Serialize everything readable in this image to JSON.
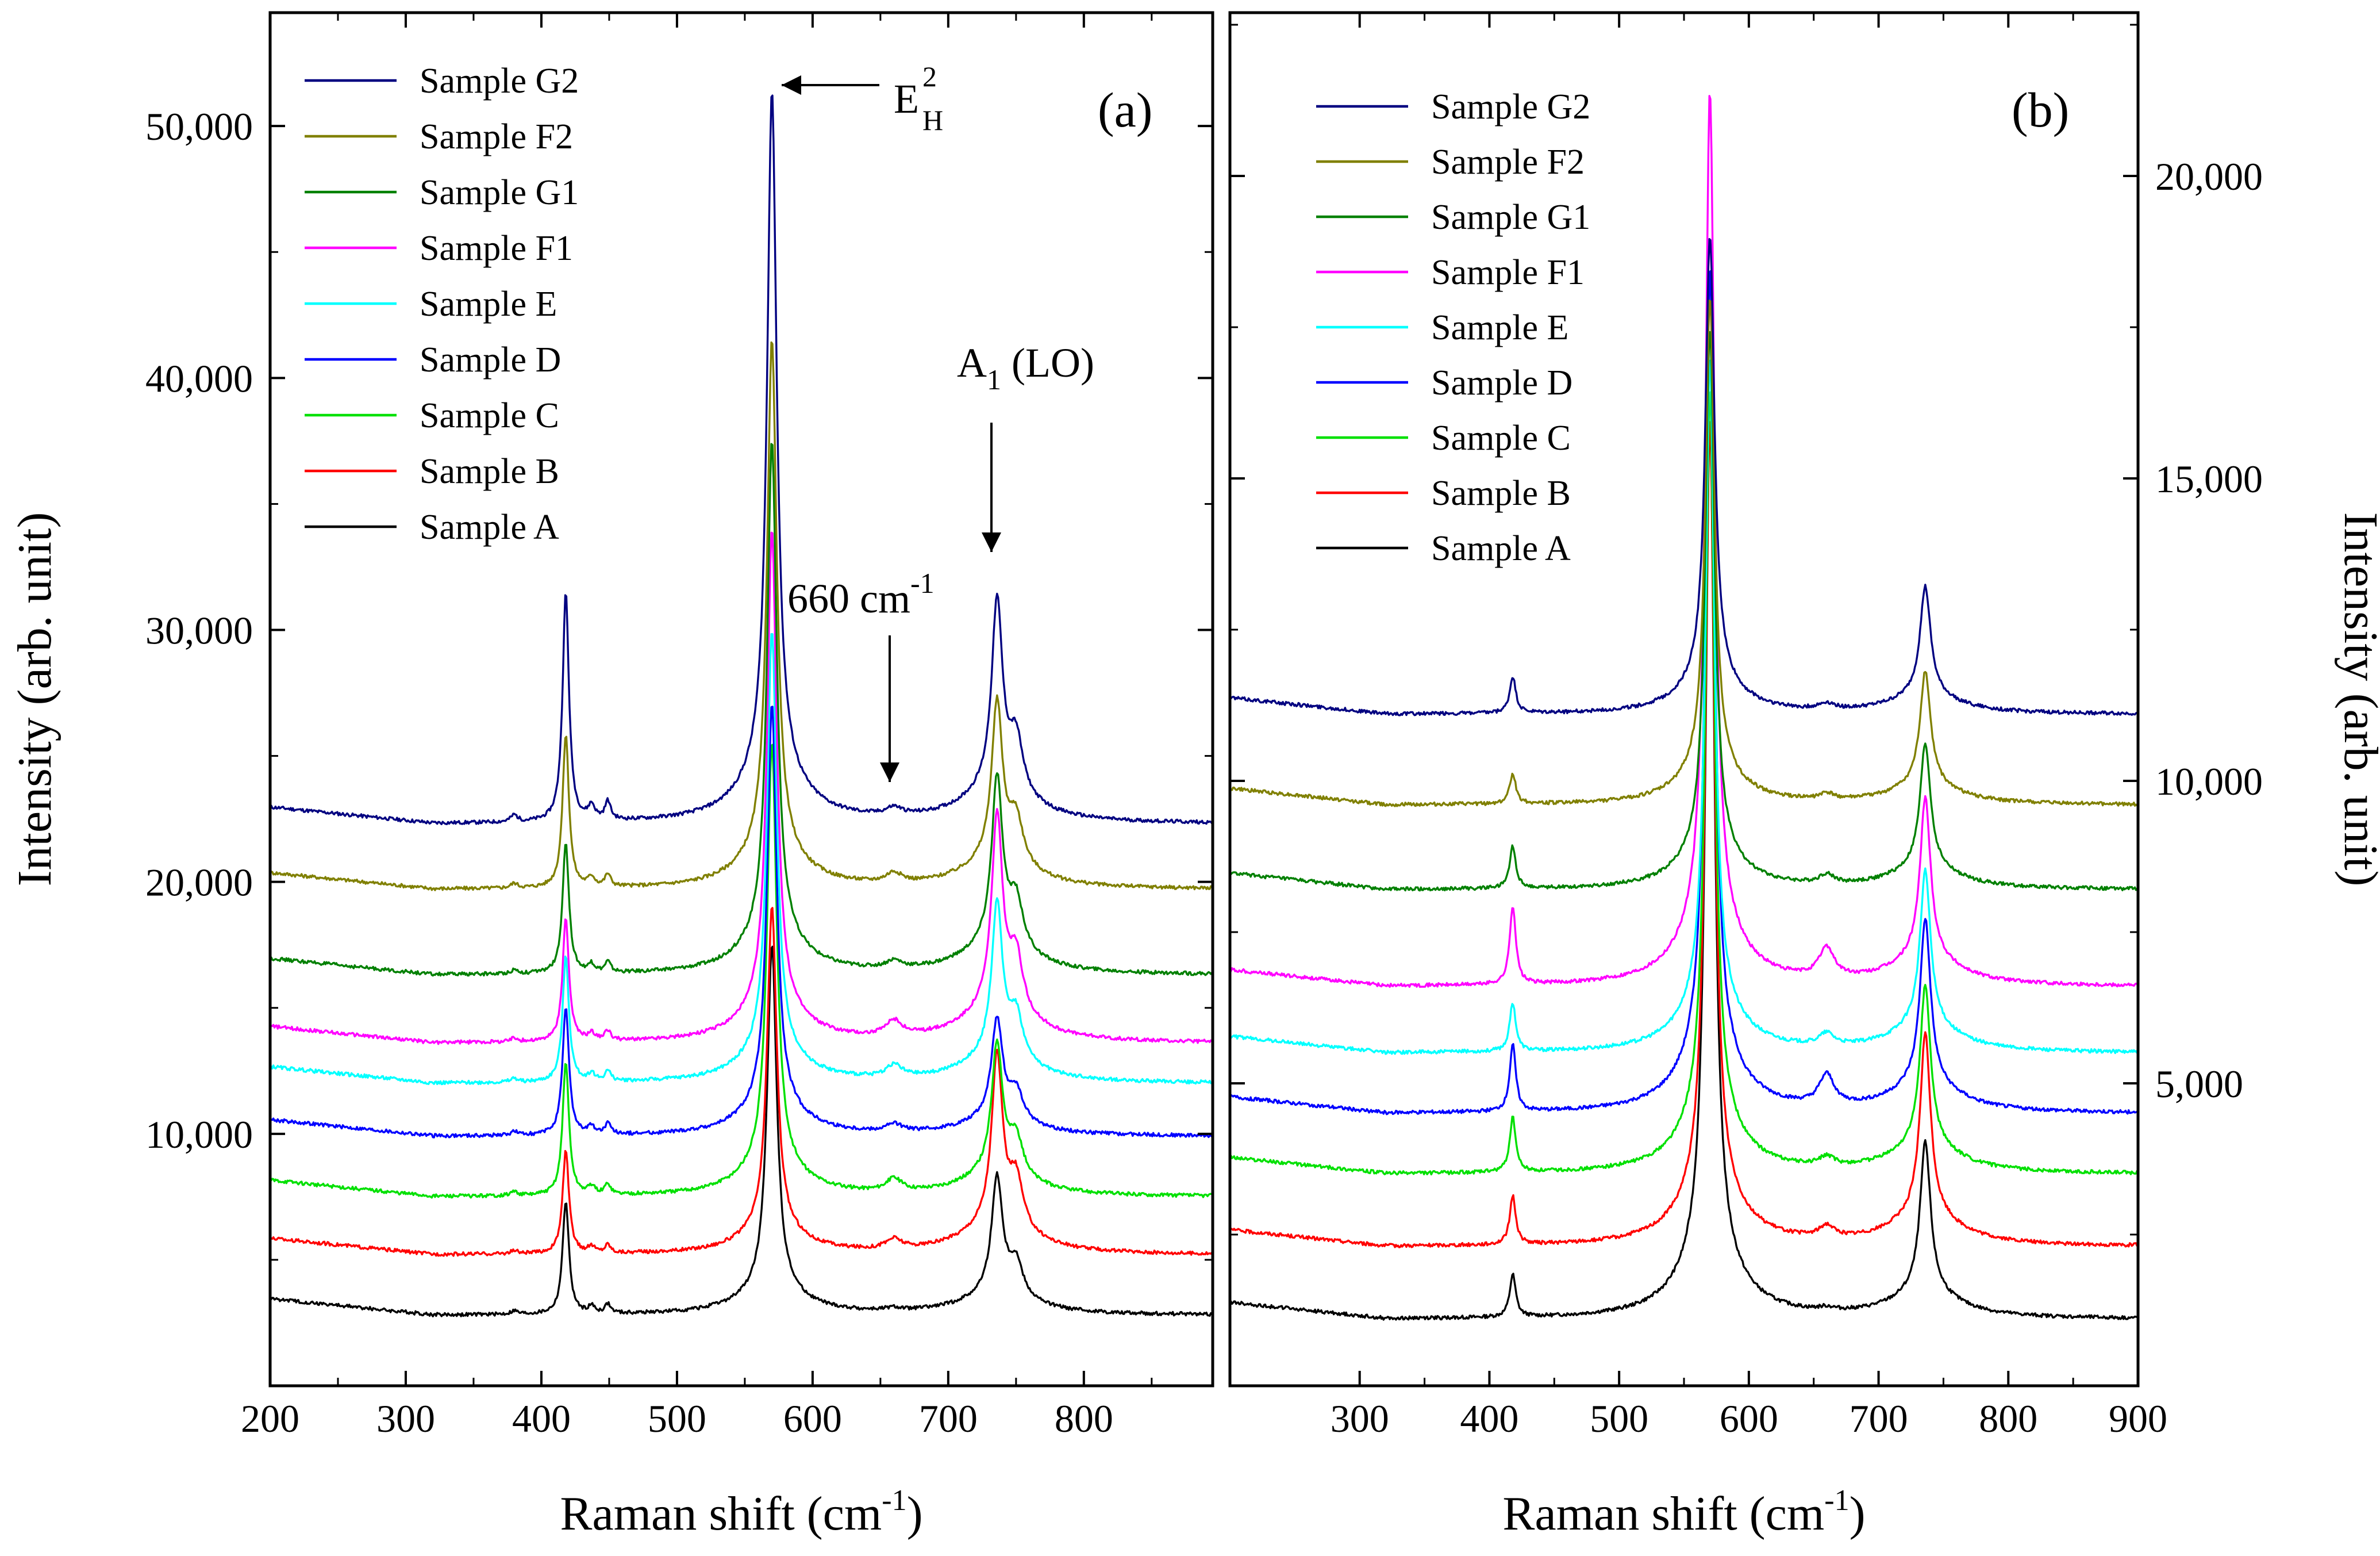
{
  "chart_data": [
    {
      "type": "line",
      "panel_label": "(a)",
      "xlabel": "Raman shift (cm",
      "xlabel_sup": "-1",
      "xlabel_close": ")",
      "ylabel": "Intensity (arb. unit)",
      "xlim": [
        200,
        895
      ],
      "ylim": [
        0,
        54500
      ],
      "x_ticks": [
        200,
        300,
        400,
        500,
        600,
        700,
        800
      ],
      "x_tick_labels": [
        "200",
        "300",
        "400",
        "500",
        "600",
        "700",
        "800"
      ],
      "y_ticks": [
        10000,
        20000,
        30000,
        40000,
        50000
      ],
      "y_tick_labels": [
        "10,000",
        "20,000",
        "30,000",
        "40,000",
        "50,000"
      ],
      "legend_position": "top-left",
      "annotations": {
        "eh2_base": "E",
        "eh2_sup": "2",
        "eh2_sub": "H",
        "a1_base": "A",
        "a1_sub": "1",
        "a1_rest": " (LO)",
        "mode660_text": "660 cm",
        "mode660_sup": "-1"
      },
      "mode_positions_cm-1": [
        418,
        437,
        449,
        570,
        660,
        736,
        750
      ],
      "series": [
        {
          "name": "Sample G2",
          "color": "#000080",
          "baseline": 22300,
          "peaks": {
            "418": 31400,
            "570": 51400,
            "660": 22600,
            "736": 31000
          }
        },
        {
          "name": "Sample F2",
          "color": "#808000",
          "baseline": 19700,
          "peaks": {
            "418": 25800,
            "570": 41500,
            "660": 20100,
            "736": 27000
          }
        },
        {
          "name": "Sample G1",
          "color": "#008000",
          "baseline": 16300,
          "peaks": {
            "418": 21500,
            "570": 37500,
            "660": 16600,
            "736": 24000
          }
        },
        {
          "name": "Sample F1",
          "color": "#FF00FF",
          "baseline": 13600,
          "peaks": {
            "418": 18500,
            "570": 34000,
            "660": 14200,
            "736": 22500
          }
        },
        {
          "name": "Sample E",
          "color": "#00FFFF",
          "baseline": 12000,
          "peaks": {
            "418": 17000,
            "570": 30000,
            "660": 12500,
            "736": 19000
          }
        },
        {
          "name": "Sample D",
          "color": "#0000FF",
          "baseline": 9900,
          "peaks": {
            "418": 15000,
            "570": 27000,
            "660": 10200,
            "736": 14500
          }
        },
        {
          "name": "Sample C",
          "color": "#00E000",
          "baseline": 7500,
          "peaks": {
            "418": 12800,
            "570": 25500,
            "660": 8000,
            "736": 13500
          }
        },
        {
          "name": "Sample B",
          "color": "#FF0000",
          "baseline": 5200,
          "peaks": {
            "418": 9300,
            "570": 19000,
            "660": 5600,
            "736": 13000
          }
        },
        {
          "name": "Sample A",
          "color": "#000000",
          "baseline": 2800,
          "peaks": {
            "418": 7300,
            "570": 17500,
            "660": 2900,
            "736": 8200
          }
        }
      ]
    },
    {
      "type": "line",
      "panel_label": "(b)",
      "xlabel": "Raman shift (cm",
      "xlabel_sup": "-1",
      "xlabel_close": ")",
      "ylabel": "Intensity (arb. unit)",
      "xlim": [
        200,
        900
      ],
      "ylim": [
        0,
        22700
      ],
      "x_ticks": [
        300,
        400,
        500,
        600,
        700,
        800,
        900
      ],
      "x_tick_labels": [
        "300",
        "400",
        "500",
        "600",
        "700",
        "800",
        "900"
      ],
      "y_ticks": [
        5000,
        10000,
        15000,
        20000
      ],
      "y_tick_labels": [
        "5,000",
        "10,000",
        "15,000",
        "20,000"
      ],
      "legend_position": "top-left",
      "mode_positions_cm-1": [
        418,
        570,
        660,
        736
      ],
      "series": [
        {
          "name": "Sample G2",
          "color": "#000080",
          "baseline": 11100,
          "peaks": {
            "418": 11700,
            "570": 19000,
            "660": 11200,
            "736": 13200
          }
        },
        {
          "name": "Sample F2",
          "color": "#808000",
          "baseline": 9600,
          "peaks": {
            "418": 10100,
            "570": 18000,
            "660": 9700,
            "736": 11800
          }
        },
        {
          "name": "Sample G1",
          "color": "#008000",
          "baseline": 8200,
          "peaks": {
            "418": 8900,
            "570": 17500,
            "660": 8350,
            "736": 10600
          }
        },
        {
          "name": "Sample F1",
          "color": "#FF00FF",
          "baseline": 6600,
          "peaks": {
            "418": 7900,
            "570": 21400,
            "660": 7100,
            "736": 9700
          }
        },
        {
          "name": "Sample E",
          "color": "#00FFFF",
          "baseline": 5500,
          "peaks": {
            "418": 6300,
            "570": 17000,
            "660": 5700,
            "736": 8500
          }
        },
        {
          "name": "Sample D",
          "color": "#0000FF",
          "baseline": 4500,
          "peaks": {
            "418": 5600,
            "570": 18500,
            "660": 5000,
            "736": 7700
          }
        },
        {
          "name": "Sample C",
          "color": "#00E000",
          "baseline": 3500,
          "peaks": {
            "418": 4400,
            "570": 16500,
            "660": 3650,
            "736": 6600
          }
        },
        {
          "name": "Sample B",
          "color": "#FF0000",
          "baseline": 2300,
          "peaks": {
            "418": 3100,
            "570": 16000,
            "660": 2500,
            "736": 5800
          }
        },
        {
          "name": "Sample A",
          "color": "#000000",
          "baseline": 1100,
          "peaks": {
            "418": 1800,
            "570": 16000,
            "660": 1150,
            "736": 4000
          }
        }
      ]
    }
  ]
}
